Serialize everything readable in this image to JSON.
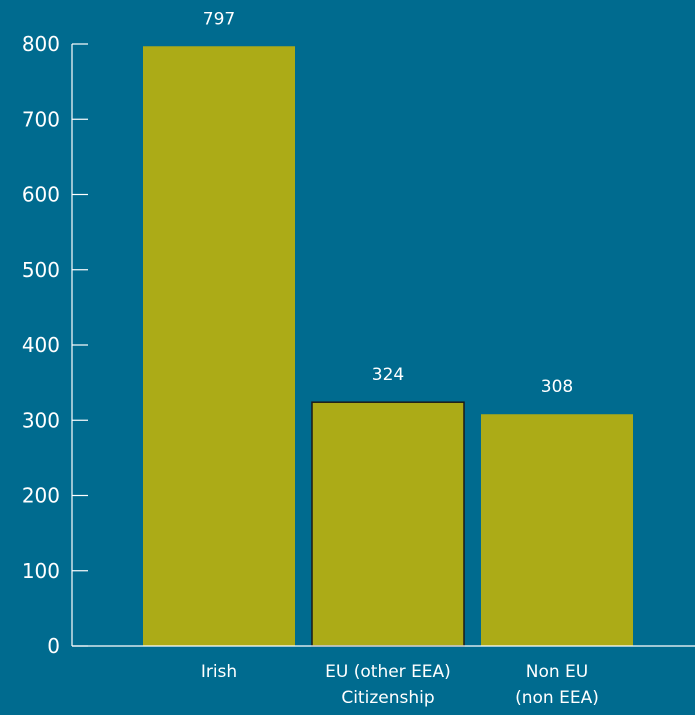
{
  "chart_data": {
    "type": "bar",
    "categories": [
      [
        "Irish"
      ],
      [
        "EU (other EEA)",
        "Citizenship"
      ],
      [
        "Non EU",
        "(non EEA)"
      ]
    ],
    "values": [
      797,
      324,
      308
    ],
    "data_labels": [
      "797",
      "324",
      "308"
    ],
    "yticks": [
      0,
      100,
      200,
      300,
      400,
      500,
      600,
      700,
      800
    ],
    "ylim": [
      0,
      800
    ],
    "title": "",
    "xlabel": "",
    "ylabel": "",
    "grid": false,
    "colors": {
      "background": "#006b8f",
      "bar": "#acab17",
      "bar_outline": "#1a1a1a",
      "axis": "#ffffff",
      "text": "#ffffff"
    }
  }
}
